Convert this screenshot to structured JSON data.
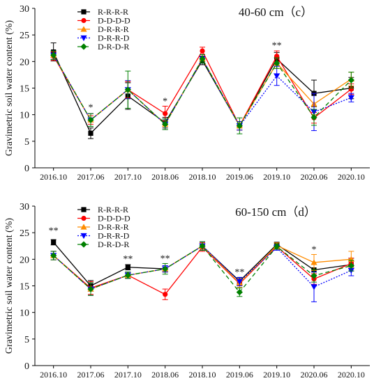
{
  "chart_data": [
    {
      "type": "line",
      "title": "40-60 cm（c）",
      "ylabel": "Gravimetric soil water content (%)",
      "xlabel": "",
      "categories": [
        "2016.10",
        "2017.06",
        "2017.10",
        "2018.06",
        "2018.10",
        "2019.06",
        "2019.10",
        "2020.06",
        "2020.10"
      ],
      "ylim": [
        0,
        30
      ],
      "yticks": [
        0,
        5,
        10,
        15,
        20,
        25,
        30
      ],
      "legend_position": "top-left",
      "series": [
        {
          "name": "R-R-R-R",
          "values": [
            21.8,
            6.5,
            13.5,
            8.5,
            20.2,
            7.9,
            20.5,
            14.0,
            15.0
          ],
          "err": [
            1.7,
            1.0,
            2.5,
            1.0,
            0.8,
            0.8,
            1.2,
            2.5,
            2.0
          ]
        },
        {
          "name": "D-D-D-D",
          "values": [
            21.0,
            9.0,
            14.7,
            10.2,
            22.0,
            7.9,
            21.0,
            9.4,
            14.8
          ],
          "err": [
            0.8,
            0.8,
            1.5,
            1.4,
            0.7,
            0.8,
            1.0,
            1.0,
            1.0
          ]
        },
        {
          "name": "D-R-R-R",
          "values": [
            21.2,
            9.0,
            14.7,
            8.2,
            20.5,
            7.9,
            19.7,
            12.0,
            16.7
          ],
          "err": [
            0.8,
            1.2,
            1.7,
            1.0,
            0.8,
            0.8,
            1.0,
            2.0,
            1.3
          ]
        },
        {
          "name": "D-R-R-D",
          "values": [
            21.2,
            9.0,
            14.7,
            8.2,
            20.5,
            7.9,
            17.3,
            10.5,
            13.2
          ],
          "err": [
            0.8,
            1.2,
            1.7,
            1.0,
            0.8,
            0.8,
            1.8,
            3.5,
            0.8
          ]
        },
        {
          "name": "D-R-D-R",
          "values": [
            21.2,
            9.0,
            14.7,
            8.2,
            20.5,
            7.9,
            19.7,
            9.5,
            16.5
          ],
          "err": [
            0.8,
            1.2,
            3.5,
            1.0,
            0.8,
            1.5,
            1.0,
            1.5,
            1.5
          ]
        }
      ],
      "significance": [
        {
          "x": "2017.06",
          "label": "*",
          "value": 10.8
        },
        {
          "x": "2018.06",
          "label": "*",
          "value": 12.0
        },
        {
          "x": "2019.10",
          "label": "**",
          "value": 22.5
        }
      ]
    },
    {
      "type": "line",
      "title": "60-150 cm（d）",
      "ylabel": "Gravimetric soil water content (%)",
      "xlabel": "",
      "categories": [
        "2016.10",
        "2017.06",
        "2017.10",
        "2018.06",
        "2018.10",
        "2019.06",
        "2019.10",
        "2020.06",
        "2020.10"
      ],
      "ylim": [
        0,
        30
      ],
      "yticks": [
        0,
        5,
        10,
        15,
        20,
        25,
        30
      ],
      "legend_position": "top-left",
      "series": [
        {
          "name": "R-R-R-R",
          "values": [
            23.2,
            15.0,
            18.5,
            18.2,
            22.5,
            15.9,
            22.8,
            18.0,
            19.0
          ],
          "err": [
            0.5,
            1.0,
            0.5,
            0.6,
            0.8,
            0.6,
            0.4,
            1.0,
            1.2
          ]
        },
        {
          "name": "D-D-D-D",
          "values": [
            20.7,
            14.6,
            17.0,
            13.4,
            22.3,
            15.4,
            22.4,
            16.3,
            19.2
          ],
          "err": [
            0.8,
            1.2,
            0.6,
            1.0,
            0.8,
            0.8,
            0.5,
            1.0,
            1.0
          ]
        },
        {
          "name": "D-R-R-R",
          "values": [
            20.7,
            14.4,
            17.0,
            18.2,
            22.5,
            15.5,
            22.6,
            19.4,
            20.0
          ],
          "err": [
            0.8,
            1.2,
            0.6,
            0.6,
            0.8,
            0.8,
            0.5,
            1.5,
            1.5
          ]
        },
        {
          "name": "D-R-R-D",
          "values": [
            20.7,
            14.4,
            17.0,
            18.2,
            22.5,
            15.8,
            22.2,
            14.8,
            17.9
          ],
          "err": [
            0.8,
            1.2,
            0.6,
            0.6,
            0.8,
            0.8,
            0.5,
            2.8,
            1.0
          ]
        },
        {
          "name": "D-R-D-R",
          "values": [
            20.7,
            14.4,
            17.0,
            18.2,
            22.5,
            13.8,
            22.4,
            16.9,
            18.8
          ],
          "err": [
            0.8,
            1.2,
            0.6,
            1.0,
            0.8,
            0.8,
            0.5,
            1.2,
            1.0
          ]
        }
      ],
      "significance": [
        {
          "x": "2016.10",
          "label": "**",
          "value": 24.8
        },
        {
          "x": "2017.10",
          "label": "**",
          "value": 19.5
        },
        {
          "x": "2018.06",
          "label": "**",
          "value": 19.6
        },
        {
          "x": "2019.06",
          "label": "**",
          "value": 17.0
        },
        {
          "x": "2020.06",
          "label": "*",
          "value": 21.3
        }
      ]
    }
  ],
  "styles": [
    {
      "color": "#000000",
      "marker": "square",
      "dash": ""
    },
    {
      "color": "#ff0000",
      "marker": "circle",
      "dash": ""
    },
    {
      "color": "#ff8c00",
      "marker": "triangle-up",
      "dash": ""
    },
    {
      "color": "#0000ff",
      "marker": "triangle-down",
      "dash": "2,2"
    },
    {
      "color": "#008000",
      "marker": "diamond",
      "dash": "6,4"
    }
  ]
}
